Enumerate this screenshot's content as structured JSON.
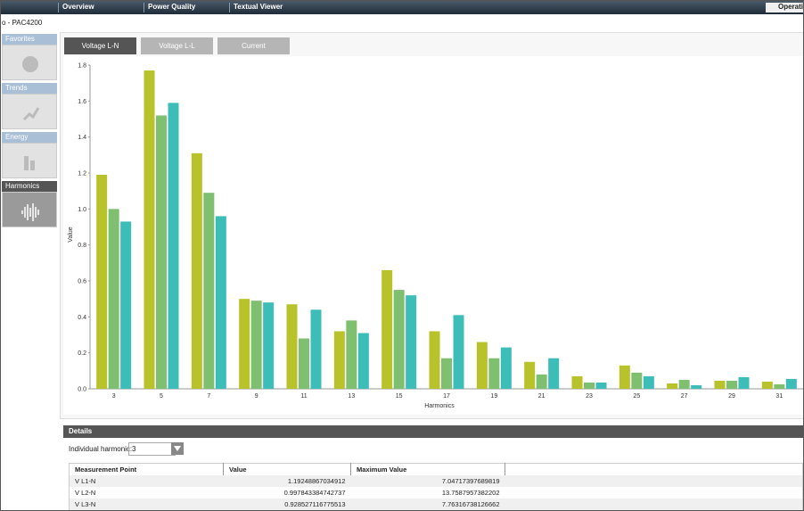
{
  "nav": {
    "items": [
      "Overview",
      "Power Quality",
      "Textual Viewer"
    ],
    "right": "Operati"
  },
  "breadcrumb": "o - PAC4200",
  "sidebar": [
    "Favorites",
    "Trends",
    "Energy",
    "Harmonics"
  ],
  "tabs": [
    "Voltage L-N",
    "Voltage L-L",
    "Current"
  ],
  "chart_data": {
    "type": "bar",
    "x_label": "Harmonics",
    "y_label": "Value",
    "categories": [
      "3",
      "5",
      "7",
      "9",
      "11",
      "13",
      "15",
      "17",
      "19",
      "21",
      "23",
      "25",
      "27",
      "29",
      "31"
    ],
    "series": [
      {
        "color": "#b8c22a",
        "values": [
          1.19,
          1.77,
          1.31,
          0.5,
          0.47,
          0.32,
          0.66,
          0.32,
          0.26,
          0.15,
          0.07,
          0.13,
          0.03,
          0.045,
          0.04
        ]
      },
      {
        "color": "#7fbf70",
        "values": [
          1.0,
          1.52,
          1.09,
          0.49,
          0.28,
          0.38,
          0.55,
          0.17,
          0.17,
          0.08,
          0.035,
          0.09,
          0.05,
          0.045,
          0.025
        ]
      },
      {
        "color": "#3dbdb8",
        "values": [
          0.93,
          1.59,
          0.96,
          0.48,
          0.44,
          0.31,
          0.52,
          0.41,
          0.23,
          0.17,
          0.035,
          0.07,
          0.02,
          0.065,
          0.055
        ]
      }
    ],
    "ylim": [
      0,
      1.8
    ],
    "yticks": [
      {
        "value": 0,
        "label": "0.0"
      },
      0.2,
      0.4,
      0.6,
      0.8,
      {
        "value": 1,
        "label": "1.0"
      },
      1.2,
      1.4,
      1.6,
      1.8
    ]
  },
  "details": {
    "title": "Details",
    "select_label": "Individual harmonic:",
    "select_value": "3"
  },
  "table": {
    "headers": [
      "Measurement Point",
      "Value",
      "Maximum Value"
    ],
    "rows": [
      [
        "V L1-N",
        "1.19248867034912",
        "7.04717397689819"
      ],
      [
        "V L2-N",
        "0.997843384742737",
        "13.7587957382202"
      ],
      [
        "V L3-N",
        "0.928527116775513",
        "7.76316738126662"
      ]
    ]
  }
}
